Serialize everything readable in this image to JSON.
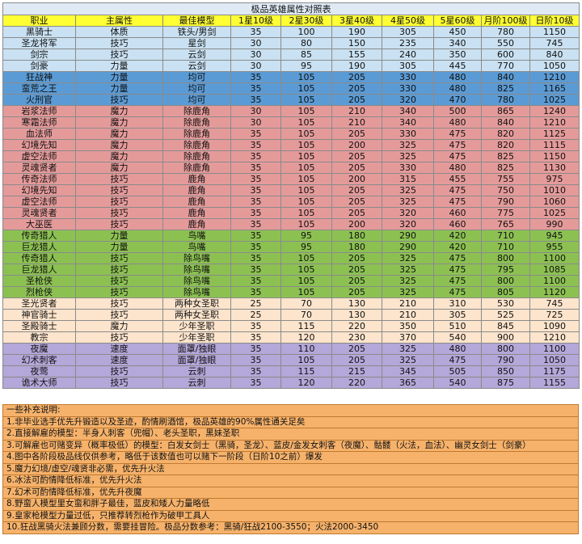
{
  "table": {
    "title": "极品英雄属性对照表",
    "title_color": "#dfeaf5",
    "header_color": "#ffff33",
    "headers": [
      "职业",
      "主属性",
      "最佳模型",
      "1星10级",
      "2星30级",
      "3星40级",
      "4星50级",
      "5星60级",
      "月阶100级",
      "日阶10级"
    ],
    "sections": [
      {
        "color": "#c9e1f2",
        "rows": [
          [
            "黑骑士",
            "体质",
            "铁头/男剑",
            35,
            100,
            190,
            305,
            450,
            780,
            1150
          ],
          [
            "圣龙将军",
            "技巧",
            "星剑",
            30,
            80,
            150,
            235,
            340,
            550,
            745
          ],
          [
            "剑宗",
            "技巧",
            "云剑",
            30,
            85,
            155,
            240,
            350,
            600,
            840
          ],
          [
            "剑豪",
            "力量",
            "云剑",
            30,
            95,
            190,
            305,
            445,
            770,
            1050
          ]
        ]
      },
      {
        "color": "#5b9bd5",
        "rows": [
          [
            "狂战神",
            "力量",
            "均可",
            35,
            105,
            205,
            330,
            480,
            840,
            1210
          ],
          [
            "蛮荒之王",
            "力量",
            "均可",
            35,
            105,
            205,
            330,
            480,
            825,
            1165
          ],
          [
            "火刑官",
            "技巧",
            "均可",
            35,
            105,
            205,
            320,
            470,
            780,
            1025
          ]
        ]
      },
      {
        "color": "#e59a9a",
        "rows": [
          [
            "岩浆法师",
            "魔力",
            "除鹿角",
            30,
            105,
            210,
            340,
            500,
            865,
            1240
          ],
          [
            "寒霜法师",
            "魔力",
            "除鹿角",
            30,
            105,
            210,
            340,
            480,
            840,
            1210
          ],
          [
            "血法师",
            "魔力",
            "除鹿角",
            35,
            105,
            205,
            330,
            475,
            820,
            1125
          ],
          [
            "幻境先知",
            "魔力",
            "除鹿角",
            35,
            105,
            200,
            325,
            475,
            820,
            1115
          ],
          [
            "虚空法师",
            "魔力",
            "除鹿角",
            35,
            105,
            205,
            325,
            475,
            825,
            1150
          ],
          [
            "灵魂贤者",
            "魔力",
            "除鹿角",
            35,
            105,
            205,
            330,
            480,
            825,
            1130
          ],
          [
            "传奇法师",
            "技巧",
            "鹿角",
            35,
            105,
            200,
            315,
            455,
            755,
            975
          ],
          [
            "幻境先知",
            "技巧",
            "鹿角",
            35,
            105,
            205,
            325,
            475,
            750,
            1010
          ],
          [
            "虚空法师",
            "技巧",
            "鹿角",
            35,
            105,
            205,
            325,
            475,
            790,
            1060
          ],
          [
            "灵魂贤者",
            "技巧",
            "鹿角",
            35,
            105,
            205,
            320,
            460,
            775,
            1025
          ],
          [
            "大巫医",
            "技巧",
            "鹿角",
            35,
            105,
            200,
            320,
            460,
            765,
            990
          ]
        ]
      },
      {
        "color": "#8cc152",
        "rows": [
          [
            "传奇猎人",
            "力量",
            "鸟嘴",
            35,
            95,
            180,
            290,
            420,
            710,
            945
          ],
          [
            "巨龙猎人",
            "力量",
            "鸟嘴",
            35,
            95,
            180,
            290,
            420,
            710,
            955
          ],
          [
            "传奇猎人",
            "技巧",
            "除鸟嘴",
            35,
            105,
            205,
            325,
            475,
            800,
            1100
          ],
          [
            "巨龙猎人",
            "技巧",
            "除鸟嘴",
            35,
            105,
            205,
            325,
            475,
            795,
            1085
          ],
          [
            "圣枪侠",
            "技巧",
            "除鸟嘴",
            35,
            105,
            205,
            325,
            475,
            800,
            1100
          ],
          [
            "烈枪侠",
            "技巧",
            "除鸟嘴",
            35,
            105,
            205,
            325,
            475,
            805,
            1120
          ]
        ]
      },
      {
        "color": "#fde4cc",
        "rows": [
          [
            "圣光贤者",
            "技巧",
            "两种女圣职",
            25,
            70,
            130,
            210,
            310,
            530,
            745
          ],
          [
            "神官骑士",
            "技巧",
            "两种女圣职",
            25,
            70,
            130,
            210,
            305,
            525,
            725
          ],
          [
            "圣殿骑士",
            "魔力",
            "少年圣职",
            35,
            115,
            220,
            350,
            510,
            845,
            1090
          ],
          [
            "教宗",
            "技巧",
            "少年圣职",
            35,
            120,
            230,
            370,
            540,
            900,
            1210
          ]
        ]
      },
      {
        "color": "#b4a7d9",
        "rows": [
          [
            "夜魔",
            "速度",
            "面罩/独眼",
            35,
            110,
            205,
            325,
            480,
            800,
            1100
          ],
          [
            "幻术刺客",
            "速度",
            "面罩/独眼",
            35,
            105,
            205,
            325,
            475,
            790,
            1050
          ],
          [
            "夜莺",
            "技巧",
            "云刺",
            35,
            115,
            215,
            345,
            505,
            850,
            1175
          ],
          [
            "诡术大师",
            "技巧",
            "云刺",
            35,
            120,
            220,
            365,
            540,
            875,
            1155
          ]
        ]
      }
    ]
  },
  "notes": {
    "color": "#f6b26b",
    "title": "一些补充说明:",
    "items": [
      "1.非毕业选手优先升锻造以及圣迹，酌情刷酒馆，极品英雄的90%属性通关足矣",
      "2.直接解雇的模型：半身人刺客（兜帽）、老头圣职，黑妹圣职",
      "3.可解雇也可赌变异（概率极低）的模型：白发女剑士（黑骑，圣龙）、蓝皮/金发女刺客（夜魔）、骷髅（火法，血法）、幽灵女剑士（剑豪）",
      "4.图中各阶段极品线仅供参考，略低于该数值也可以赌下一阶段（日阶10之前）爆发",
      "5.魔力幻境/虚空/魂贤非必需，优先升火法",
      "6.冰法可酌情降低标准，优先升火法",
      "7.幻术可酌情降低标准，优先升夜魔",
      "8.野蛮人模型里女蛮和胖子最佳，蓝皮和矮人力量略低",
      "9.皇家枪模型力量过低，只推荐转烈枪作为破甲工具人",
      "10.狂战黑骑火法兼顾分数，需要挂冒险。极品分数参考：黑骑/狂战2100-3550；火法2000-3450"
    ]
  }
}
